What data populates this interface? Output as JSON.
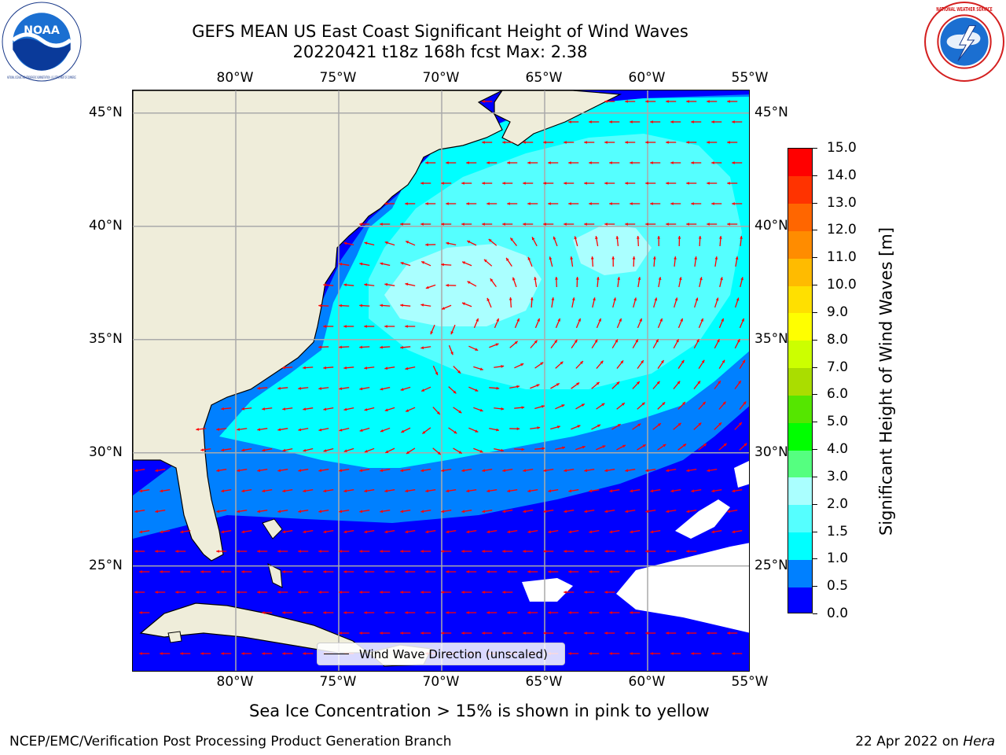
{
  "title": {
    "line1": "GEFS MEAN US East Coast Significant Height of Wind Waves",
    "line2": "20220421 t18z 168h fcst   Max: 2.38"
  },
  "logos": {
    "left": "noaa-logo",
    "left_text": "NOAA",
    "left_ring_text": "NATIONAL OCEANIC AND ATMOSPHERIC ADMINISTRATION · U.S. DEPARTMENT OF COMMERCE",
    "right": "nws-logo",
    "right_ring_text": "NATIONAL WEATHER SERVICE"
  },
  "map": {
    "lon_ticks": [
      "80°W",
      "75°W",
      "70°W",
      "65°W",
      "60°W",
      "55°W"
    ],
    "lon_values": [
      -80,
      -75,
      -70,
      -65,
      -60,
      -55
    ],
    "lat_ticks": [
      "45°N",
      "40°N",
      "35°N",
      "30°N",
      "25°N"
    ],
    "lat_values": [
      45,
      40,
      35,
      30,
      25
    ],
    "lon_range": [
      -85,
      -55
    ],
    "lat_range": [
      20.3,
      46
    ],
    "land_color": "#efedda",
    "ocean_color": "#0000ff",
    "arrow_color": "#ff0000",
    "grid": true
  },
  "colorbar": {
    "label": "Significant Height of Wind Waves [m]",
    "levels": [
      "0.0",
      "0.5",
      "1.0",
      "1.5",
      "2.0",
      "3.0",
      "4.0",
      "5.0",
      "6.0",
      "7.0",
      "8.0",
      "9.0",
      "10.0",
      "11.0",
      "12.0",
      "13.0",
      "14.0",
      "15.0"
    ],
    "colors": [
      "#0000ff",
      "#0080ff",
      "#00ffff",
      "#55ffff",
      "#aaffff",
      "#55ff80",
      "#00ff00",
      "#55e600",
      "#aadd00",
      "#ccff00",
      "#ffff00",
      "#ffe000",
      "#ffbb00",
      "#ff8c00",
      "#ff6600",
      "#ff3300",
      "#ff0000"
    ]
  },
  "legend": {
    "label": "Wind Wave Direction (unscaled)"
  },
  "notes": {
    "ice": "Sea Ice Concentration > 15% is shown in pink to yellow"
  },
  "footer": {
    "left": "NCEP/EMC/Verification Post Processing Product Generation Branch",
    "date": "22 Apr 2022 on",
    "machine": "Hera"
  }
}
